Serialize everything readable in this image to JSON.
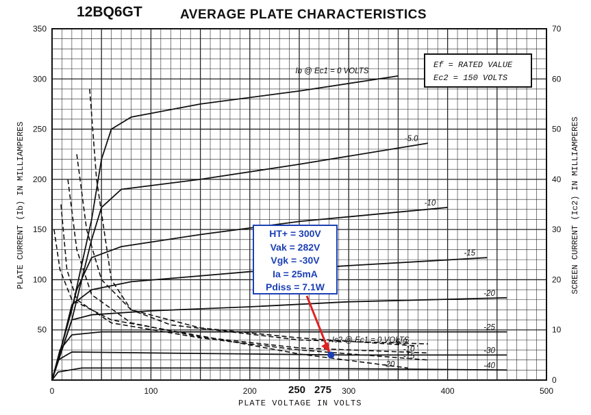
{
  "header": {
    "part_number": "12BQ6GT",
    "title": "AVERAGE PLATE CHARACTERISTICS"
  },
  "conditions": {
    "line1": "Ef = RATED VALUE",
    "line2": "Ec2 = 150 VOLTS"
  },
  "annotation": {
    "lines": [
      "HT+ = 300V",
      "Vak = 282V",
      "Vgk = -30V",
      "Ia = 25mA",
      "Pdiss = 7.1W"
    ],
    "color": "#1a3fb5",
    "arrow_color": "#e02020"
  },
  "extra_x_labels": [
    "250",
    "275"
  ],
  "chart_data": {
    "type": "line",
    "xlabel": "PLATE VOLTAGE IN VOLTS",
    "ylabel": "PLATE CURRENT (Ib) IN MILLIAMPERES",
    "y2label": "SCREEN CURRENT (Ic2) IN MILLIAMPERES",
    "xlim": [
      0,
      500
    ],
    "ylim": [
      0,
      350
    ],
    "y2lim": [
      0,
      70
    ],
    "x_ticks": [
      0,
      100,
      200,
      300,
      400,
      500
    ],
    "y_ticks": [
      50,
      100,
      150,
      200,
      250,
      300,
      350
    ],
    "y2_ticks": [
      0,
      10,
      20,
      30,
      40,
      50,
      60,
      70
    ],
    "grid": true,
    "plate_curves": [
      {
        "label": "Ib @ Ec1 = 0 VOLTS",
        "points": [
          [
            0,
            0
          ],
          [
            20,
            70
          ],
          [
            40,
            160
          ],
          [
            50,
            220
          ],
          [
            60,
            250
          ],
          [
            80,
            262
          ],
          [
            150,
            275
          ],
          [
            250,
            288
          ],
          [
            350,
            303
          ]
        ]
      },
      {
        "label": "-5.0",
        "points": [
          [
            0,
            0
          ],
          [
            20,
            60
          ],
          [
            40,
            140
          ],
          [
            50,
            172
          ],
          [
            70,
            190
          ],
          [
            150,
            200
          ],
          [
            250,
            215
          ],
          [
            380,
            236
          ]
        ]
      },
      {
        "label": "-10",
        "points": [
          [
            0,
            0
          ],
          [
            10,
            35
          ],
          [
            25,
            90
          ],
          [
            40,
            122
          ],
          [
            70,
            133
          ],
          [
            150,
            145
          ],
          [
            250,
            158
          ],
          [
            400,
            172
          ]
        ]
      },
      {
        "label": "-15",
        "points": [
          [
            0,
            0
          ],
          [
            10,
            35
          ],
          [
            20,
            75
          ],
          [
            40,
            90
          ],
          [
            80,
            98
          ],
          [
            200,
            108
          ],
          [
            300,
            114
          ],
          [
            440,
            122
          ]
        ]
      },
      {
        "label": "-20",
        "points": [
          [
            0,
            0
          ],
          [
            10,
            30
          ],
          [
            20,
            60
          ],
          [
            40,
            65
          ],
          [
            100,
            69
          ],
          [
            200,
            73
          ],
          [
            300,
            78
          ],
          [
            460,
            82
          ]
        ]
      },
      {
        "label": "-25",
        "points": [
          [
            0,
            0
          ],
          [
            8,
            30
          ],
          [
            20,
            45
          ],
          [
            50,
            48
          ],
          [
            150,
            48
          ],
          [
            300,
            48
          ],
          [
            460,
            48
          ]
        ]
      },
      {
        "label": "-30",
        "points": [
          [
            0,
            0
          ],
          [
            6,
            20
          ],
          [
            20,
            28
          ],
          [
            100,
            27
          ],
          [
            200,
            26
          ],
          [
            300,
            25
          ],
          [
            460,
            25
          ]
        ]
      },
      {
        "label": "-40",
        "points": [
          [
            0,
            0
          ],
          [
            6,
            8
          ],
          [
            30,
            12
          ],
          [
            200,
            12
          ],
          [
            350,
            11
          ],
          [
            460,
            10
          ]
        ]
      }
    ],
    "screen_curves": [
      {
        "label": "Ic2 @ Ec1 = 0 VOLTS",
        "points": [
          [
            38,
            290
          ],
          [
            45,
            200
          ],
          [
            60,
            100
          ],
          [
            80,
            70
          ],
          [
            120,
            55
          ],
          [
            250,
            40
          ],
          [
            380,
            36
          ]
        ]
      },
      {
        "label": "-5.0",
        "points": [
          [
            25,
            225
          ],
          [
            35,
            150
          ],
          [
            50,
            100
          ],
          [
            80,
            70
          ],
          [
            150,
            52
          ],
          [
            250,
            42
          ],
          [
            370,
            34
          ]
        ]
      },
      {
        "label": "-10",
        "points": [
          [
            16,
            200
          ],
          [
            25,
            130
          ],
          [
            40,
            85
          ],
          [
            80,
            57
          ],
          [
            150,
            43
          ],
          [
            250,
            32
          ],
          [
            380,
            27
          ]
        ]
      },
      {
        "label": "-15",
        "points": [
          [
            9,
            175
          ],
          [
            15,
            110
          ],
          [
            25,
            80
          ],
          [
            60,
            57
          ],
          [
            150,
            42
          ],
          [
            250,
            30
          ],
          [
            380,
            20
          ]
        ]
      },
      {
        "label": "-20",
        "points": [
          [
            2,
            150
          ],
          [
            8,
            110
          ],
          [
            20,
            80
          ],
          [
            60,
            60
          ],
          [
            150,
            44
          ],
          [
            250,
            26
          ],
          [
            360,
            12
          ]
        ]
      }
    ],
    "operating_point": {
      "x": 282,
      "y": 25
    }
  }
}
